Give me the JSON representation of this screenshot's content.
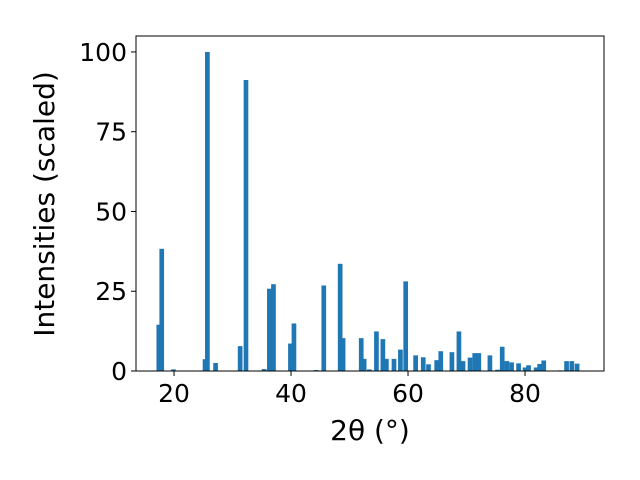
{
  "chart_data": {
    "type": "bar",
    "xlabel": "2θ (°)",
    "ylabel": "Intensities (scaled)",
    "xlim": [
      13.5,
      93.5
    ],
    "ylim": [
      0,
      105
    ],
    "x_ticks": [
      20,
      40,
      60,
      80
    ],
    "y_ticks": [
      0,
      25,
      50,
      75,
      100
    ],
    "bar_color": "#1f77b4",
    "grid": false,
    "bar_width": 0.8,
    "x": [
      17.4,
      17.9,
      19.9,
      25.3,
      25.7,
      27.1,
      31.3,
      32.3,
      35.4,
      36.3,
      37.0,
      39.9,
      40.5,
      44.3,
      45.6,
      48.4,
      48.9,
      52.0,
      52.5,
      53.4,
      54.6,
      55.7,
      56.3,
      57.6,
      58.7,
      59.6,
      61.3,
      62.6,
      63.5,
      64.9,
      65.6,
      67.5,
      68.7,
      69.4,
      70.6,
      71.4,
      72.1,
      74.0,
      75.3,
      76.1,
      76.9,
      77.7,
      78.9,
      80.0,
      80.6,
      81.9,
      82.5,
      83.2,
      86.0,
      87.1,
      88.0,
      88.9
    ],
    "values": [
      14.5,
      38.3,
      0.5,
      3.7,
      100.0,
      2.5,
      7.8,
      91.2,
      0.6,
      25.8,
      27.2,
      8.6,
      14.9,
      0.3,
      26.8,
      33.6,
      10.3,
      10.3,
      3.8,
      0.5,
      12.4,
      10.0,
      3.8,
      3.8,
      6.7,
      28.1,
      4.9,
      4.3,
      2.1,
      3.4,
      6.2,
      5.9,
      12.4,
      3.1,
      4.2,
      5.6,
      5.6,
      4.9,
      0.4,
      7.6,
      3.1,
      2.7,
      2.4,
      1.1,
      1.8,
      1.1,
      2.2,
      3.3,
      0.2,
      3.1,
      3.1,
      2.3
    ]
  }
}
